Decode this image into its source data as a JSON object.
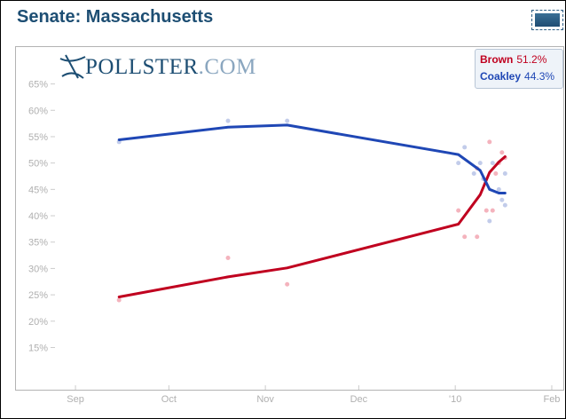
{
  "header": {
    "title": "Senate: Massachusetts"
  },
  "logo": {
    "text_main": "POLLSTER",
    "text_suffix": ".COM"
  },
  "legend": {
    "entries": [
      {
        "name": "Brown",
        "value": "51.2%",
        "color": "#c0001f"
      },
      {
        "name": "Coakley",
        "value": "44.3%",
        "color": "#1f47b5"
      }
    ]
  },
  "chart_data": {
    "type": "line",
    "title": "Senate: Massachusetts",
    "xlabel": "",
    "ylabel": "",
    "y_ticks": [
      "15%",
      "20%",
      "25%",
      "30%",
      "35%",
      "40%",
      "45%",
      "50%",
      "55%",
      "60%",
      "65%"
    ],
    "x_ticks": [
      "Sep",
      "Oct",
      "Nov",
      "Dec",
      "'10",
      "Feb"
    ],
    "x_tick_dates": [
      "2009-09-01",
      "2009-10-01",
      "2009-11-01",
      "2009-12-01",
      "2010-01-01",
      "2010-02-01"
    ],
    "ylim": [
      7,
      72
    ],
    "xlim": [
      "2009-08-24",
      "2010-02-05"
    ],
    "grid": false,
    "legend_position": "top-right",
    "series": [
      {
        "name": "Brown",
        "color": "#c0001f",
        "trend": [
          {
            "x": "2009-09-15",
            "y": 24.6
          },
          {
            "x": "2009-10-20",
            "y": 28.4
          },
          {
            "x": "2009-11-08",
            "y": 30.1
          },
          {
            "x": "2010-01-02",
            "y": 38.4
          },
          {
            "x": "2010-01-09",
            "y": 44.0
          },
          {
            "x": "2010-01-12",
            "y": 48.2
          },
          {
            "x": "2010-01-15",
            "y": 50.2
          },
          {
            "x": "2010-01-17",
            "y": 51.2
          }
        ],
        "polls": [
          {
            "x": "2009-09-15",
            "y": 24
          },
          {
            "x": "2009-10-20",
            "y": 32
          },
          {
            "x": "2009-11-08",
            "y": 27
          },
          {
            "x": "2010-01-02",
            "y": 41
          },
          {
            "x": "2010-01-04",
            "y": 36
          },
          {
            "x": "2010-01-08",
            "y": 36
          },
          {
            "x": "2010-01-08",
            "y": 49
          },
          {
            "x": "2010-01-11",
            "y": 41
          },
          {
            "x": "2010-01-12",
            "y": 54
          },
          {
            "x": "2010-01-13",
            "y": 41
          },
          {
            "x": "2010-01-14",
            "y": 48
          },
          {
            "x": "2010-01-15",
            "y": 50
          },
          {
            "x": "2010-01-16",
            "y": 52
          },
          {
            "x": "2010-01-17",
            "y": 51
          }
        ]
      },
      {
        "name": "Coakley",
        "color": "#1f47b5",
        "trend": [
          {
            "x": "2009-09-15",
            "y": 54.4
          },
          {
            "x": "2009-10-20",
            "y": 56.8
          },
          {
            "x": "2009-11-08",
            "y": 57.2
          },
          {
            "x": "2010-01-02",
            "y": 51.6
          },
          {
            "x": "2010-01-09",
            "y": 48.6
          },
          {
            "x": "2010-01-12",
            "y": 45.0
          },
          {
            "x": "2010-01-15",
            "y": 44.3
          },
          {
            "x": "2010-01-17",
            "y": 44.3
          }
        ],
        "polls": [
          {
            "x": "2009-09-15",
            "y": 54
          },
          {
            "x": "2009-10-20",
            "y": 58
          },
          {
            "x": "2009-11-08",
            "y": 58
          },
          {
            "x": "2010-01-02",
            "y": 50
          },
          {
            "x": "2010-01-04",
            "y": 53
          },
          {
            "x": "2010-01-07",
            "y": 48
          },
          {
            "x": "2010-01-09",
            "y": 50
          },
          {
            "x": "2010-01-10",
            "y": 47
          },
          {
            "x": "2010-01-12",
            "y": 39
          },
          {
            "x": "2010-01-13",
            "y": 50
          },
          {
            "x": "2010-01-15",
            "y": 45
          },
          {
            "x": "2010-01-16",
            "y": 43
          },
          {
            "x": "2010-01-17",
            "y": 42
          },
          {
            "x": "2010-01-17",
            "y": 48
          }
        ]
      }
    ]
  }
}
